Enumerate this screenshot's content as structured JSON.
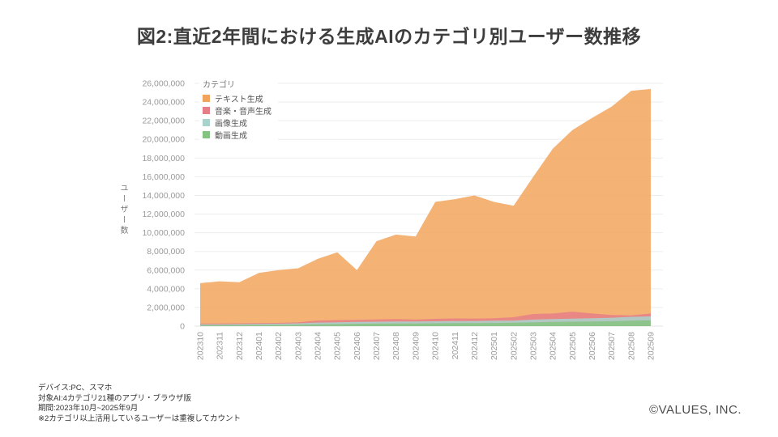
{
  "title": "図2:直近2年間における生成AIのカテゴリ別ユーザー数推移",
  "chart_data": {
    "type": "area",
    "layering": "overlapping-from-zero-baseline",
    "legend_title": "カテゴリ",
    "legend_position": "top-left-inside",
    "ylabel": "ユーザー数",
    "ylim": [
      0,
      26000000
    ],
    "ytick_step": 2000000,
    "grid": true,
    "categories": [
      "202310",
      "202311",
      "202312",
      "202401",
      "202402",
      "202403",
      "202404",
      "202405",
      "202406",
      "202407",
      "202408",
      "202409",
      "202410",
      "202411",
      "202412",
      "202501",
      "202502",
      "202503",
      "202504",
      "202505",
      "202506",
      "202507",
      "202508",
      "202509"
    ],
    "series": [
      {
        "name": "テキスト生成",
        "color": "#F2A45C",
        "values": [
          4600000,
          4800000,
          4700000,
          5700000,
          6000000,
          6200000,
          7200000,
          7900000,
          6000000,
          9100000,
          9800000,
          9600000,
          13300000,
          13600000,
          14000000,
          13300000,
          12900000,
          16000000,
          19000000,
          21000000,
          22300000,
          23500000,
          25200000,
          25400000
        ]
      },
      {
        "name": "音楽・音声生成",
        "color": "#E57F87",
        "values": [
          280000,
          280000,
          300000,
          320000,
          350000,
          420000,
          600000,
          650000,
          680000,
          720000,
          750000,
          700000,
          780000,
          820000,
          800000,
          850000,
          950000,
          1300000,
          1350000,
          1550000,
          1350000,
          1200000,
          1150000,
          1350000
        ]
      },
      {
        "name": "画像生成",
        "color": "#A8D3CD",
        "values": [
          200000,
          200000,
          220000,
          240000,
          260000,
          300000,
          380000,
          420000,
          450000,
          480000,
          500000,
          500000,
          520000,
          550000,
          550000,
          580000,
          600000,
          700000,
          750000,
          800000,
          850000,
          900000,
          1000000,
          1050000
        ]
      },
      {
        "name": "動画生成",
        "color": "#85C383",
        "values": [
          100000,
          100000,
          110000,
          120000,
          130000,
          150000,
          200000,
          220000,
          250000,
          270000,
          280000,
          280000,
          300000,
          320000,
          320000,
          340000,
          360000,
          400000,
          450000,
          480000,
          500000,
          520000,
          580000,
          620000
        ]
      }
    ]
  },
  "footer": {
    "lines": [
      "デバイス:PC、スマホ",
      "対象AI:4カテゴリ21種のアプリ・ブラウザ版",
      "期間:2023年10月~2025年9月",
      "※2カテゴリ以上活用しているユーザーは重複してカウント"
    ]
  },
  "copyright": "©VALUES, INC."
}
